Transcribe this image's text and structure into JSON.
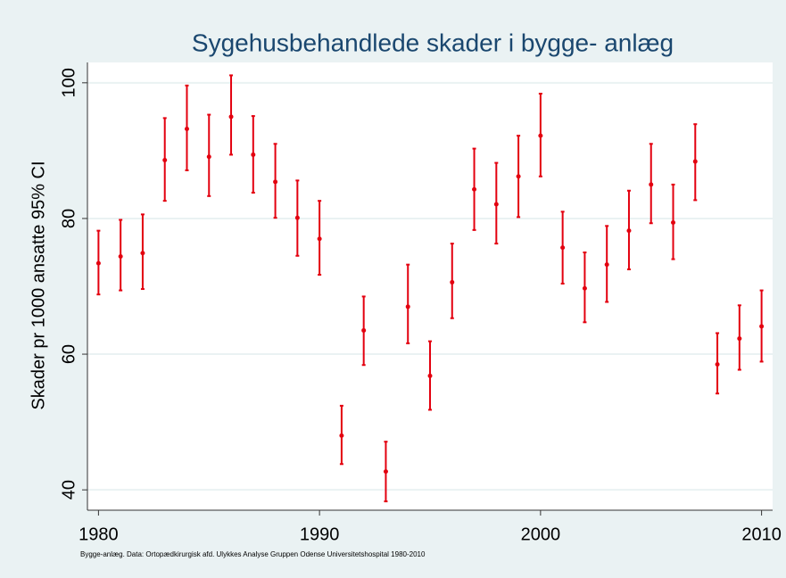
{
  "chart_data": {
    "type": "errorbar",
    "title": "Sygehusbehandlede skader i bygge- anlæg",
    "y_label": "Skader pr 1000 ansatte 95% CI",
    "note": "Bygge-anlæg. Data: Ortopædkirurgisk afd. Ulykkes Analyse Gruppen Odense Universitetshospital 1980-2010",
    "x": [
      1980,
      1981,
      1982,
      1983,
      1984,
      1985,
      1986,
      1987,
      1988,
      1989,
      1990,
      1991,
      1992,
      1993,
      1994,
      1995,
      1996,
      1997,
      1998,
      1999,
      2000,
      2001,
      2002,
      2003,
      2004,
      2005,
      2006,
      2007,
      2008,
      2009,
      2010
    ],
    "values": [
      73.4,
      74.4,
      74.9,
      88.6,
      93.2,
      89.1,
      95.0,
      89.4,
      85.4,
      80.1,
      77.0,
      48.0,
      63.5,
      42.7,
      67.0,
      56.8,
      70.6,
      84.3,
      82.1,
      86.2,
      92.2,
      75.7,
      69.7,
      73.2,
      78.2,
      85.0,
      79.4,
      88.4,
      58.5,
      62.3,
      64.1
    ],
    "ci_low": [
      68.8,
      69.4,
      69.6,
      82.6,
      87.1,
      83.3,
      89.4,
      83.8,
      80.1,
      74.5,
      71.7,
      43.8,
      58.4,
      38.3,
      61.6,
      51.8,
      65.3,
      78.3,
      76.3,
      80.2,
      86.2,
      70.4,
      64.7,
      67.7,
      72.5,
      79.3,
      74.0,
      82.7,
      54.2,
      57.7,
      58.9
    ],
    "ci_high": [
      78.2,
      79.8,
      80.6,
      94.8,
      99.6,
      95.3,
      101.1,
      95.1,
      91.0,
      85.6,
      82.6,
      52.4,
      68.5,
      47.1,
      73.2,
      61.9,
      76.3,
      90.3,
      88.2,
      92.2,
      98.4,
      81.0,
      75.0,
      78.9,
      84.1,
      91.0,
      85.0,
      93.9,
      63.1,
      67.2,
      69.4
    ],
    "color": "#e3000f",
    "xlim": [
      1979.5,
      2010.5
    ],
    "xticks": [
      1980,
      1990,
      2000,
      2010
    ],
    "ylim": [
      37,
      103
    ],
    "yticks": [
      40,
      60,
      80,
      100
    ],
    "grid": true
  }
}
